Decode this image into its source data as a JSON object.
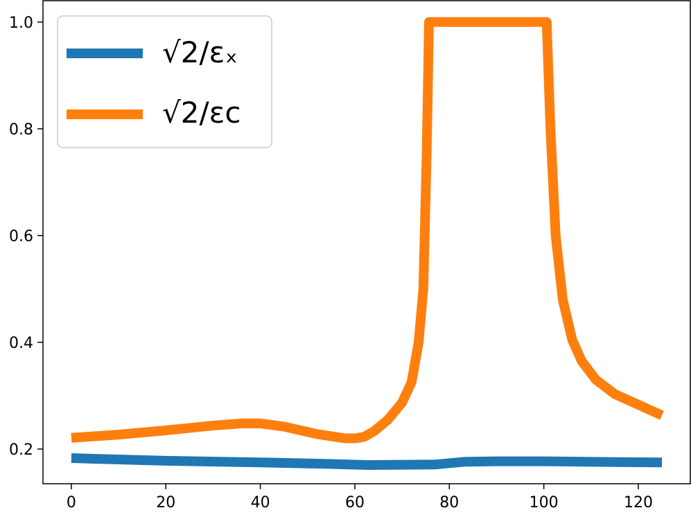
{
  "chart_data": {
    "type": "line",
    "title": "",
    "xlabel": "",
    "ylabel": "",
    "xlim": [
      -6,
      131
    ],
    "ylim": [
      0.135,
      1.04
    ],
    "x_ticks": [
      0,
      20,
      40,
      60,
      80,
      100,
      120
    ],
    "y_ticks": [
      0.2,
      0.4,
      0.6,
      0.8,
      1.0
    ],
    "x_tick_labels": [
      "0",
      "20",
      "40",
      "60",
      "80",
      "100",
      "120"
    ],
    "y_tick_labels": [
      "0.2",
      "0.4",
      "0.6",
      "0.8",
      "1.0"
    ],
    "grid": false,
    "legend_position": "top-left",
    "series": [
      {
        "name": "√2/εx",
        "legend_label": "√2/εₓ",
        "color": "#1f77b4",
        "points": [
          [
            0,
            0.183
          ],
          [
            20,
            0.178
          ],
          [
            40,
            0.175
          ],
          [
            55,
            0.172
          ],
          [
            63,
            0.17
          ],
          [
            77,
            0.171
          ],
          [
            83,
            0.176
          ],
          [
            90,
            0.177
          ],
          [
            100,
            0.177
          ],
          [
            110,
            0.176
          ],
          [
            125,
            0.175
          ]
        ]
      },
      {
        "name": "√2/εc",
        "legend_label": "√2/εc",
        "color": "#ff7f0e",
        "points": [
          [
            0,
            0.221
          ],
          [
            10,
            0.227
          ],
          [
            20,
            0.235
          ],
          [
            30,
            0.244
          ],
          [
            36,
            0.248
          ],
          [
            40,
            0.248
          ],
          [
            45,
            0.242
          ],
          [
            52,
            0.228
          ],
          [
            58,
            0.22
          ],
          [
            60,
            0.22
          ],
          [
            62,
            0.223
          ],
          [
            64,
            0.233
          ],
          [
            67,
            0.255
          ],
          [
            70,
            0.287
          ],
          [
            72,
            0.325
          ],
          [
            73.5,
            0.4
          ],
          [
            74.5,
            0.5
          ],
          [
            75.2,
            0.75
          ],
          [
            75.7,
            1.0
          ],
          [
            100.6,
            1.0
          ],
          [
            101.4,
            0.8
          ],
          [
            102.5,
            0.6
          ],
          [
            104,
            0.48
          ],
          [
            106,
            0.405
          ],
          [
            108,
            0.365
          ],
          [
            111,
            0.33
          ],
          [
            115,
            0.303
          ],
          [
            120,
            0.283
          ],
          [
            125,
            0.263
          ]
        ]
      }
    ]
  }
}
